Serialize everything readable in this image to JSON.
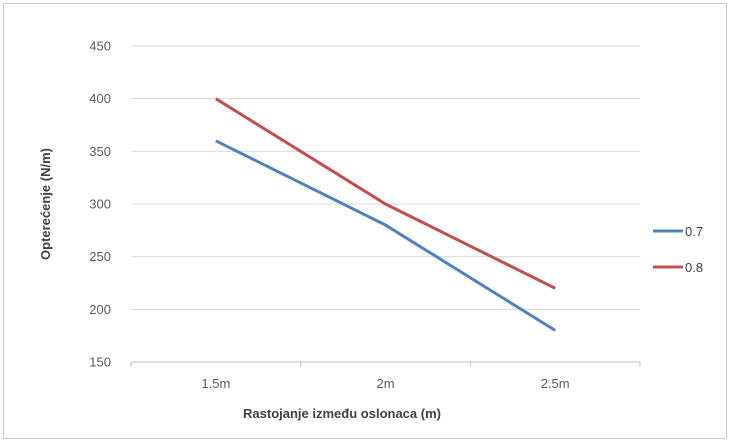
{
  "chart_data": {
    "type": "line",
    "title": "",
    "xlabel": "Rastojanje između oslonaca (m)",
    "ylabel": "Opterećenje  (N/m)",
    "categories": [
      "1.5m",
      "2m",
      "2.5m"
    ],
    "ylim": [
      150,
      450
    ],
    "yticks": [
      150,
      200,
      250,
      300,
      350,
      400,
      450
    ],
    "grid": "horizontal",
    "legend_position": "right",
    "series": [
      {
        "name": "0.7",
        "color": "#4f81bd",
        "values": [
          360,
          280,
          180
        ]
      },
      {
        "name": "0.8",
        "color": "#c0504d",
        "values": [
          400,
          300,
          220
        ]
      }
    ]
  }
}
